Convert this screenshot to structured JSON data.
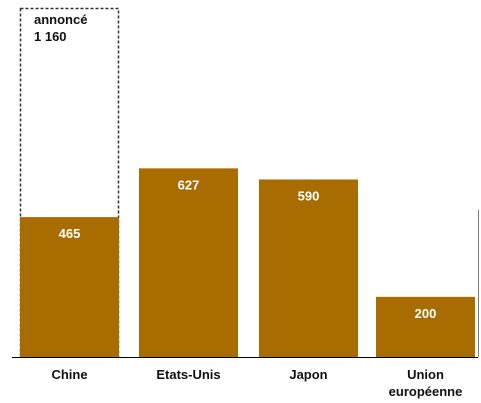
{
  "chart_data": {
    "type": "bar",
    "categories": [
      "Chine",
      "Etats-Unis",
      "Japon",
      "Union\neuropéenne"
    ],
    "values": [
      465,
      627,
      590,
      200
    ],
    "value_labels": [
      "465",
      "627",
      "590",
      "200"
    ],
    "announced": {
      "category": "Chine",
      "value": 1160,
      "label_lines": [
        "annoncé",
        "1 160"
      ]
    },
    "ylim": [
      0,
      1160
    ],
    "grid": false,
    "colors": {
      "bar": "#a86c00",
      "announced_outline": "#333333",
      "baseline": "#000000"
    }
  }
}
